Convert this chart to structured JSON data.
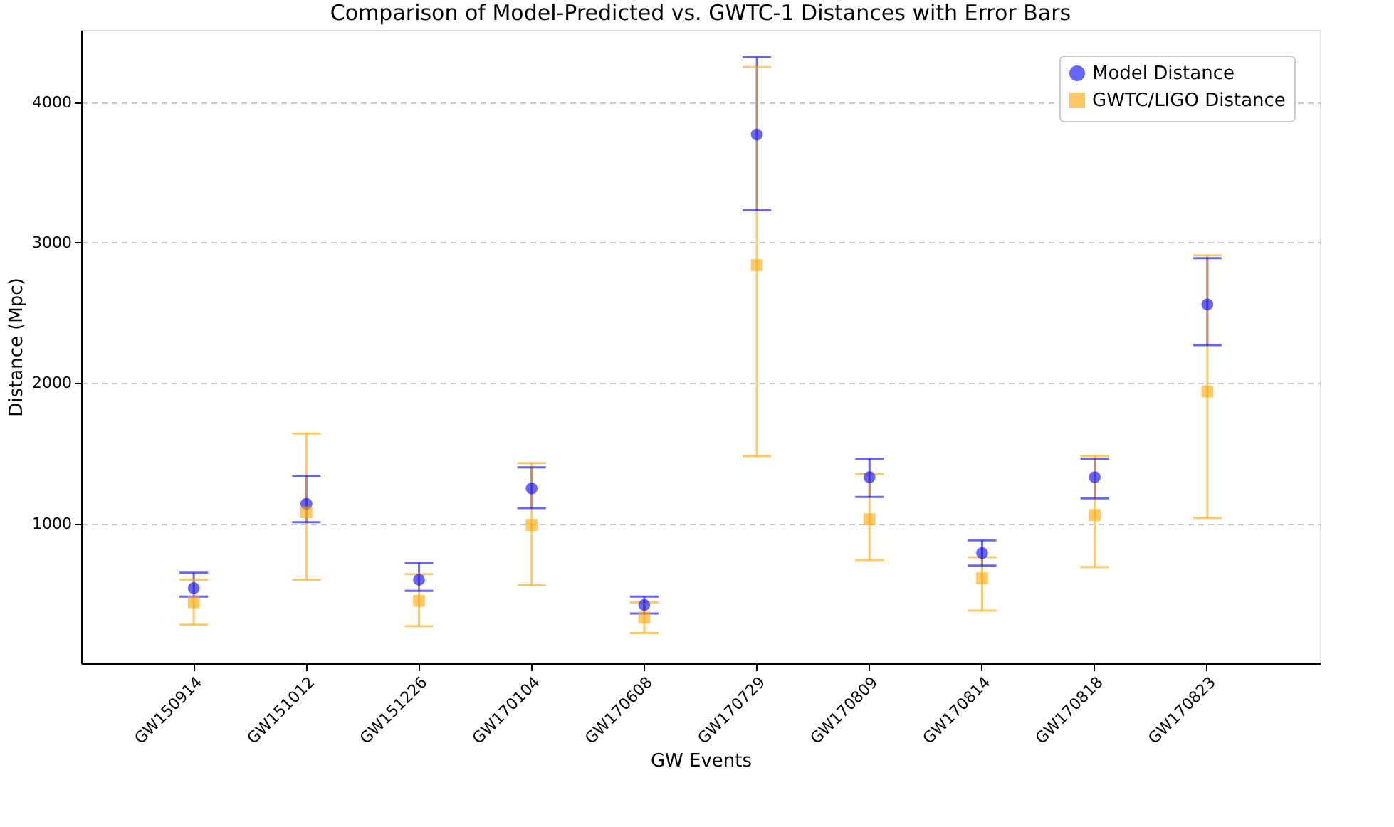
{
  "chart_data": {
    "type": "scatter",
    "title": "Comparison of Model-Predicted vs. GWTC-1 Distances with Error Bars",
    "xlabel": "GW Events",
    "ylabel": "Distance (Mpc)",
    "categories": [
      "GW150914",
      "GW151012",
      "GW151226",
      "GW170104",
      "GW170608",
      "GW170729",
      "GW170809",
      "GW170814",
      "GW170818",
      "GW170823"
    ],
    "series": [
      {
        "name": "Model Distance",
        "color": "#0000ff",
        "marker": "circle",
        "values": [
          540,
          1140,
          600,
          1250,
          420,
          3770,
          1330,
          790,
          1330,
          2560
        ],
        "errors": [
          [
            480,
            650
          ],
          [
            1010,
            1340
          ],
          [
            520,
            720
          ],
          [
            1110,
            1400
          ],
          [
            360,
            480
          ],
          [
            3230,
            4320
          ],
          [
            1190,
            1460
          ],
          [
            700,
            880
          ],
          [
            1180,
            1460
          ],
          [
            2270,
            2890
          ]
        ]
      },
      {
        "name": "GWTC/LIGO Distance",
        "color": "#ffa500",
        "marker": "square",
        "values": [
          440,
          1080,
          450,
          990,
          330,
          2840,
          1030,
          610,
          1060,
          1940
        ],
        "errors": [
          [
            280,
            600
          ],
          [
            600,
            1640
          ],
          [
            270,
            640
          ],
          [
            560,
            1430
          ],
          [
            220,
            440
          ],
          [
            1480,
            4250
          ],
          [
            740,
            1350
          ],
          [
            380,
            760
          ],
          [
            690,
            1480
          ],
          [
            1040,
            2910
          ]
        ]
      }
    ],
    "ylim": [
      5,
      4515
    ],
    "yticks": [
      1000,
      2000,
      3000,
      4000
    ],
    "grid": "y",
    "legend": "top right"
  }
}
